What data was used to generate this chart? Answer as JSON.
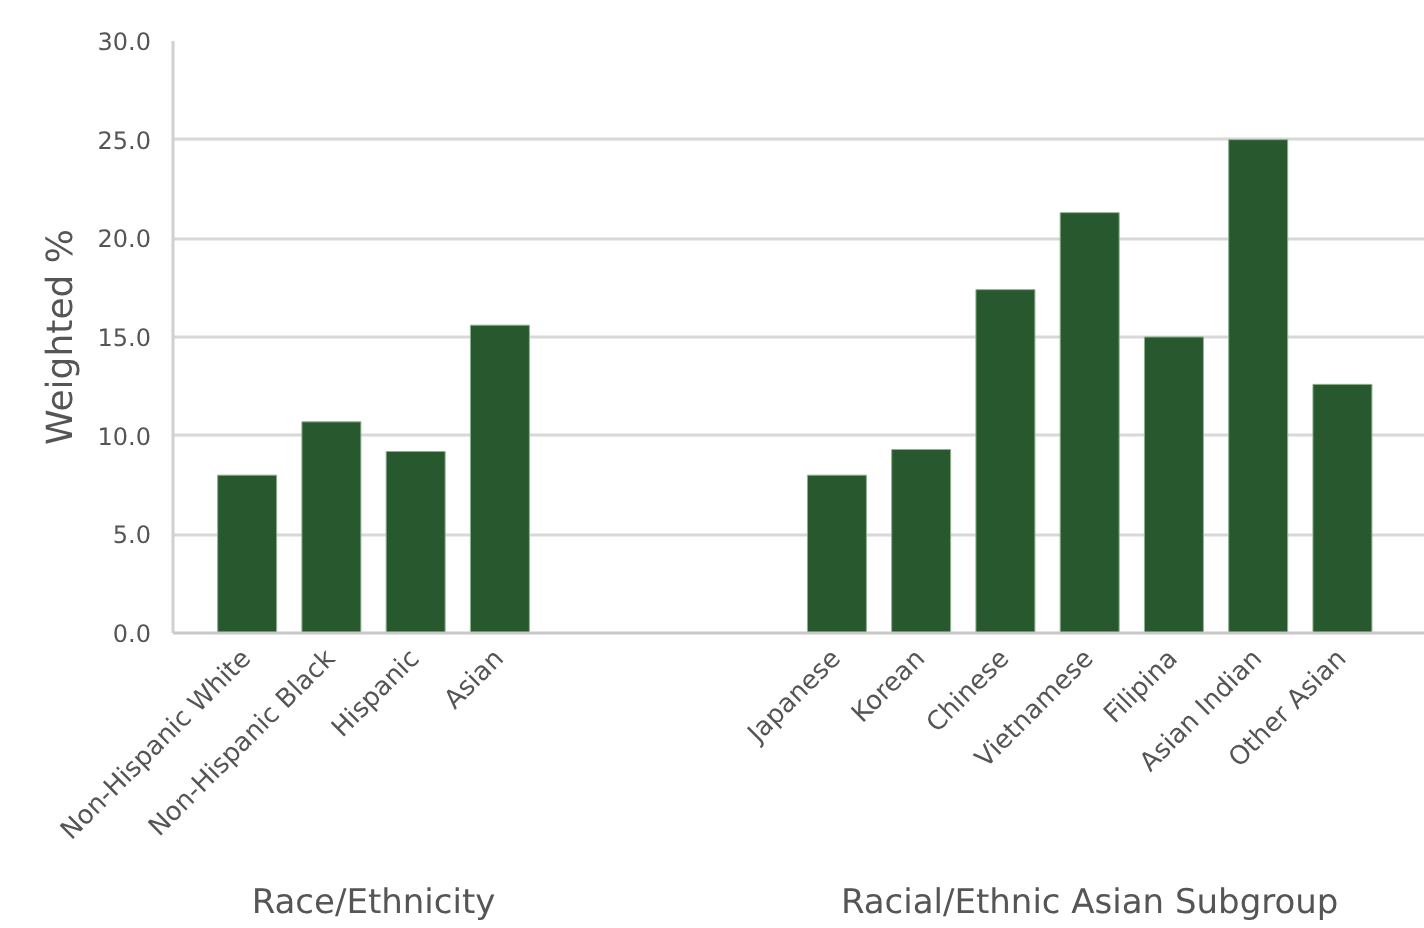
{
  "chart_data": {
    "type": "bar",
    "ylabel": "Weighted %",
    "categories": [
      "Non-Hispanic White",
      "Non-Hispanic Black",
      "Hispanic",
      "Asian",
      null,
      null,
      null,
      "Japanese",
      "Korean",
      "Chinese",
      "Vietnamese",
      "Filipina",
      "Asian Indian",
      "Other Asian"
    ],
    "values": [
      8.0,
      10.7,
      9.2,
      15.6,
      null,
      null,
      null,
      8.0,
      9.3,
      17.4,
      21.3,
      15.0,
      25.0,
      12.6
    ],
    "color": "#27582e",
    "ylim": [
      0,
      30
    ],
    "yticks": [
      {
        "value": 0,
        "label": "0.0"
      },
      {
        "value": 5,
        "label": "5.0"
      },
      {
        "value": 10,
        "label": "10.0"
      },
      {
        "value": 15,
        "label": "15.0"
      },
      {
        "value": 20,
        "label": "20.0"
      },
      {
        "value": 25,
        "label": "25.0"
      },
      {
        "value": 30,
        "label": "30.0"
      }
    ],
    "grid": "y",
    "annotations": [
      "Race/Ethnicity",
      "Racial/Ethnic Asian Subgroup"
    ]
  }
}
